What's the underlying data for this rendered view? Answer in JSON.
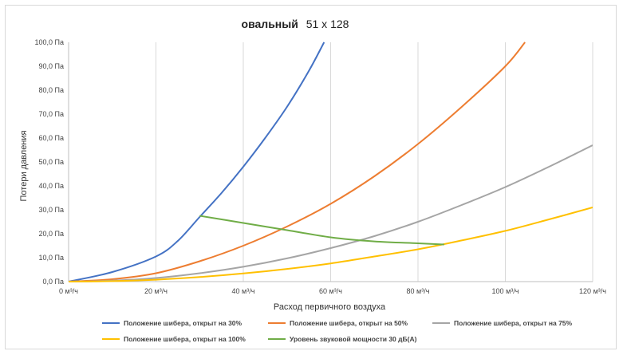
{
  "chart_data": {
    "type": "line",
    "title_bold": "овальный",
    "title_rest": "51 x 128",
    "xlabel": "Расход первичного воздуха",
    "ylabel": "Потери давления",
    "xlim": [
      0,
      120
    ],
    "ylim": [
      0,
      100
    ],
    "x_ticks": [
      0,
      20,
      40,
      60,
      80,
      100,
      120
    ],
    "x_tick_labels": [
      "0 м³/ч",
      "20 м³/ч",
      "40 м³/ч",
      "60 м³/ч",
      "80 м³/ч",
      "100 м³/ч",
      "120 м³/ч"
    ],
    "y_ticks": [
      0,
      10,
      20,
      30,
      40,
      50,
      60,
      70,
      80,
      90,
      100
    ],
    "y_tick_labels": [
      "0,0 Па",
      "10,0 Па",
      "20,0 Па",
      "30,0 Па",
      "40,0 Па",
      "50,0 Па",
      "60,0 Па",
      "70,0 Па",
      "80,0 Па",
      "90,0 Па",
      "100,0 Па"
    ],
    "grid": "vertical",
    "legend_position": "bottom",
    "series": [
      {
        "name": "Положение шибера, открыт на 30%",
        "color": "#4472c4",
        "x": [
          0,
          10,
          20,
          25,
          30,
          35,
          40,
          45,
          50,
          55,
          58.5
        ],
        "y": [
          0,
          4,
          10.5,
          17,
          27,
          37,
          48,
          60,
          73,
          88,
          100
        ]
      },
      {
        "name": "Положение шибера, открыт на 50%",
        "color": "#ed7d31",
        "x": [
          0,
          10,
          20,
          30,
          40,
          50,
          60,
          70,
          80,
          90,
          100,
          104.5
        ],
        "y": [
          0,
          1,
          3.5,
          8.5,
          15,
          23,
          32.5,
          44,
          57.5,
          73,
          90,
          100
        ]
      },
      {
        "name": "Положение шибера, открыт на 75%",
        "color": "#a5a5a5",
        "x": [
          0,
          10,
          20,
          30,
          40,
          50,
          60,
          70,
          80,
          90,
          100,
          110,
          120
        ],
        "y": [
          0,
          0.4,
          1.5,
          3.5,
          6.2,
          9.7,
          14,
          19,
          25,
          32,
          39.5,
          48,
          57
        ]
      },
      {
        "name": "Положение шибера, открыт на 100%",
        "color": "#ffc000",
        "x": [
          0,
          10,
          20,
          30,
          40,
          50,
          60,
          70,
          80,
          90,
          100,
          110,
          120
        ],
        "y": [
          0,
          0.2,
          0.8,
          1.9,
          3.4,
          5.3,
          7.6,
          10.5,
          13.5,
          17.2,
          21.2,
          26,
          31
        ]
      },
      {
        "name": "Уровень звуковой мощности 30 дБ(A)",
        "color": "#70ad47",
        "x": [
          30,
          40,
          50,
          60,
          70,
          80,
          86
        ],
        "y": [
          27.5,
          24.5,
          21.5,
          18.5,
          16.8,
          16,
          15.5
        ]
      }
    ]
  }
}
